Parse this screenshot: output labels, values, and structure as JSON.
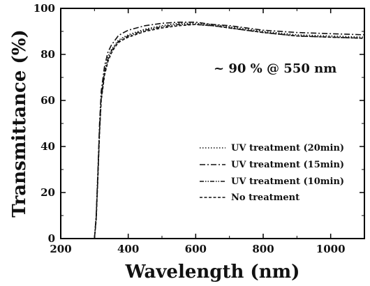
{
  "chart_data": {
    "type": "line",
    "xlabel": "Wavelength (nm)",
    "ylabel": "Transmittance (%)",
    "xlim": [
      200,
      1100
    ],
    "ylim": [
      0,
      100
    ],
    "x_ticks": [
      200,
      400,
      600,
      800,
      1000
    ],
    "y_ticks": [
      0,
      20,
      40,
      60,
      80,
      100
    ],
    "grid": false,
    "legend_position": "lower-right",
    "annotation": "~ 90 % @ 550 nm",
    "series": [
      {
        "name": "UV treatment (20min)",
        "dash": "dotted",
        "x": [
          300,
          305,
          310,
          315,
          320,
          330,
          340,
          350,
          360,
          370,
          380,
          400,
          450,
          500,
          550,
          600,
          650,
          700,
          800,
          900,
          1000,
          1100
        ],
        "y": [
          0,
          10,
          28,
          48,
          62,
          73,
          79,
          82,
          84,
          86,
          87,
          88.5,
          91,
          92.5,
          93.5,
          93.5,
          93,
          92,
          90,
          88.5,
          88,
          87.5
        ]
      },
      {
        "name": "UV treatment (15min)",
        "dash": "dashdot",
        "x": [
          300,
          305,
          310,
          315,
          320,
          330,
          340,
          350,
          360,
          370,
          380,
          400,
          450,
          500,
          550,
          600,
          650,
          700,
          800,
          900,
          1000,
          1100
        ],
        "y": [
          0,
          10,
          29,
          50,
          64,
          75,
          81,
          84,
          86,
          88,
          89,
          90.5,
          92.5,
          93.5,
          94,
          94,
          93,
          92.5,
          90.5,
          89.5,
          89,
          88.5
        ]
      },
      {
        "name": "UV treatment (10min)",
        "dash": "dashdotdot",
        "x": [
          300,
          305,
          310,
          315,
          320,
          330,
          340,
          350,
          360,
          370,
          380,
          400,
          450,
          500,
          550,
          600,
          650,
          700,
          800,
          900,
          1000,
          1100
        ],
        "y": [
          0,
          9,
          27,
          47,
          61,
          72,
          78,
          81.5,
          83.5,
          85.5,
          86.5,
          88,
          90.5,
          92,
          93,
          93,
          92.5,
          91.5,
          89.5,
          88,
          87.5,
          87
        ]
      },
      {
        "name": "No treatment",
        "dash": "dashed",
        "x": [
          300,
          305,
          310,
          315,
          320,
          330,
          340,
          350,
          360,
          370,
          380,
          400,
          450,
          500,
          550,
          600,
          650,
          700,
          800,
          900,
          1000,
          1100
        ],
        "y": [
          0,
          8,
          26,
          46,
          60,
          71,
          77,
          80.5,
          83,
          85,
          86,
          87.5,
          90,
          91.5,
          92.5,
          93,
          92.5,
          91.5,
          89.5,
          88,
          87.5,
          87
        ]
      }
    ]
  }
}
